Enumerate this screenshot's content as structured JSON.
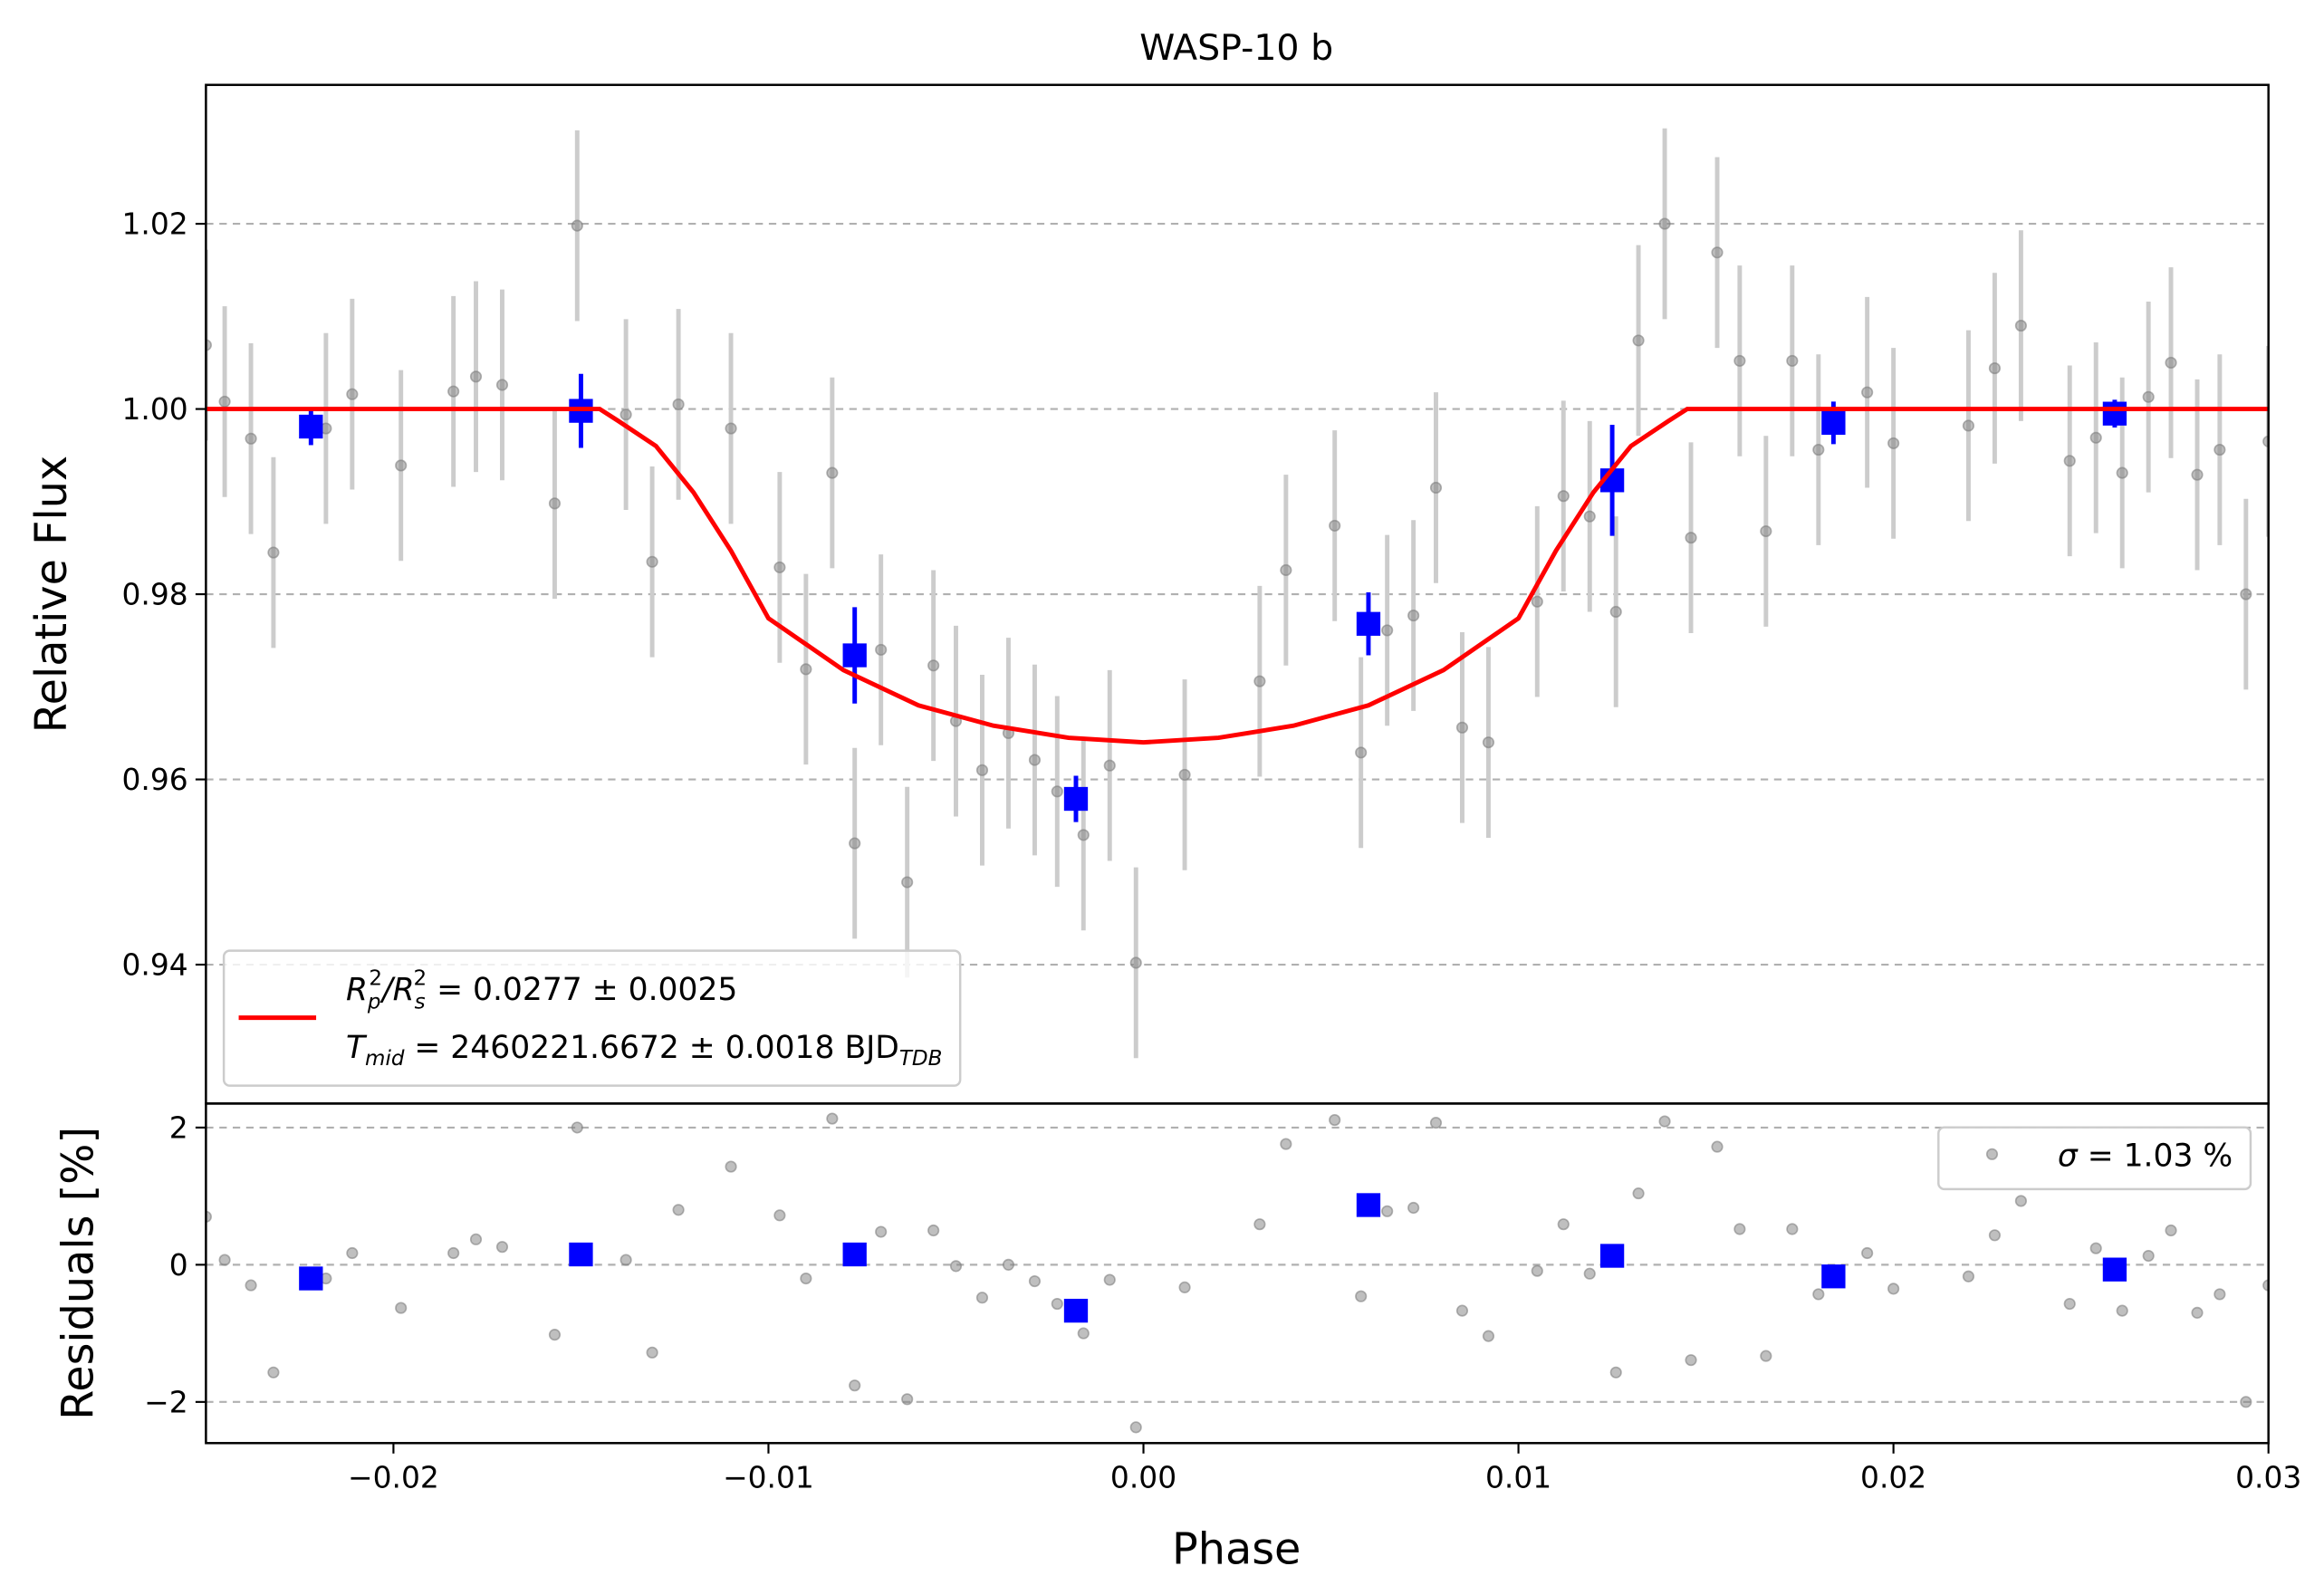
{
  "chart_data": [
    {
      "type": "scatter",
      "title": "WASP-10 b",
      "y_label": "Relative Flux",
      "xlim": [
        -0.025,
        0.03
      ],
      "ylim": [
        0.925,
        1.035
      ],
      "yticks": [
        0.94,
        0.96,
        0.98,
        {
          "value": 1.0,
          "label": "1.00"
        },
        1.02
      ],
      "grid": true,
      "legend": "lower left",
      "series": [
        {
          "style": "points",
          "color": "#808080",
          "errcolor": "#cccccc",
          "yerr": 0.0103,
          "x": [
            -0.025,
            -0.0245,
            -0.0238,
            -0.0232,
            -0.0218,
            -0.0211,
            -0.0198,
            -0.0184,
            -0.0178,
            -0.0171,
            -0.0157,
            -0.0151,
            -0.0138,
            -0.0131,
            -0.0124,
            -0.011,
            -0.0097,
            -0.009,
            -0.0083,
            -0.0077,
            -0.007,
            -0.0063,
            -0.0056,
            -0.005,
            -0.0043,
            -0.0036,
            -0.0029,
            -0.0023,
            -0.0016,
            -0.0009,
            -0.0002,
            0.0011,
            0.0031,
            0.0038,
            0.0051,
            0.0058,
            0.0065,
            0.0072,
            0.0078,
            0.0085,
            0.0092,
            0.0105,
            0.0112,
            0.0119,
            0.0126,
            0.0132,
            0.0139,
            0.0146,
            0.0153,
            0.0159,
            0.0166,
            0.0173,
            0.018,
            0.0193,
            0.02,
            0.022,
            0.0227,
            0.0234,
            0.0247,
            0.0254,
            0.0261,
            0.0268,
            0.0274,
            0.0281,
            0.0287,
            0.0294,
            0.03
          ],
          "values": [
            1.0069,
            1.0008,
            0.9968,
            0.9845,
            0.9979,
            1.0016,
            0.9939,
            1.0019,
            1.0035,
            1.0026,
            0.9898,
            1.0198,
            0.9994,
            0.9835,
            1.0005,
            0.9979,
            0.9829,
            0.9719,
            0.9931,
            0.9531,
            0.974,
            0.9489,
            0.9723,
            0.9663,
            0.961,
            0.965,
            0.9621,
            0.9587,
            0.954,
            0.9615,
            0.9402,
            0.9605,
            0.9706,
            0.9826,
            0.9874,
            0.9629,
            0.9761,
            0.9777,
            0.9915,
            0.9656,
            0.964,
            0.9792,
            0.9906,
            0.9884,
            0.9781,
            1.0074,
            1.02,
            0.9861,
            1.0169,
            1.0052,
            0.9868,
            1.0052,
            0.9956,
            1.0018,
            0.9963,
            0.9982,
            1.0044,
            1.009,
            0.9944,
            0.9969,
            0.9931,
            1.0013,
            1.005,
            0.9929,
            0.9956,
            0.98,
            0.9965
          ]
        },
        {
          "style": "squares",
          "color": "#0000ff",
          "errcolor": "#0000ff",
          "x": [
            -0.0222,
            -0.015,
            -0.0077,
            -0.0018,
            0.006,
            0.0125,
            0.0184,
            0.0259
          ],
          "values": [
            0.9981,
            0.9998,
            0.9734,
            0.9579,
            0.9768,
            0.9923,
            0.9985,
            0.9995
          ],
          "yerr": [
            0.002,
            0.004,
            0.0052,
            0.0025,
            0.0034,
            0.006,
            0.0023,
            0.0015
          ]
        },
        {
          "style": "line",
          "color": "#ff0000",
          "name": [
            [
              "R",
              "p",
              "2",
              "/R",
              "s",
              "2",
              " = 0.0277 ± 0.0025"
            ],
            [
              "T",
              "mid",
              " = 2460221.6672 ± 0.0018 BJD",
              "TDB"
            ]
          ],
          "x": [
            -0.025,
            -0.0145,
            -0.014,
            -0.013,
            -0.012,
            -0.011,
            -0.01,
            -0.008,
            -0.006,
            -0.004,
            -0.002,
            0,
            0.002,
            0.004,
            0.006,
            0.008,
            0.01,
            0.011,
            0.012,
            0.013,
            0.014,
            0.0145,
            0.03
          ],
          "values": [
            1,
            1,
            0.9987,
            0.996,
            0.991,
            0.9847,
            0.9774,
            0.9718,
            0.968,
            0.9658,
            0.9645,
            0.964,
            0.9645,
            0.9658,
            0.968,
            0.9718,
            0.9774,
            0.9847,
            0.991,
            0.996,
            0.9987,
            1,
            1
          ]
        }
      ]
    },
    {
      "type": "scatter",
      "y_label": "Residuals [%]",
      "x_label": "Phase",
      "xlim": [
        -0.025,
        0.03
      ],
      "ylim": [
        -2.6,
        2.35
      ],
      "xticks": [
        {
          "value": -0.02,
          "label": "−0.02"
        },
        {
          "value": -0.01,
          "label": "−0.01"
        },
        {
          "value": 0,
          "label": "0.00"
        },
        0.01,
        0.02,
        0.03
      ],
      "yticks": [
        {
          "value": -2,
          "label": "−2"
        },
        0,
        2
      ],
      "grid": true,
      "legend": "upper right",
      "series": [
        {
          "style": "points",
          "color": "#808080",
          "name": [
            "σ",
            " = 1.03 %"
          ],
          "x": [
            -0.025,
            -0.0245,
            -0.0238,
            -0.0232,
            -0.0218,
            -0.0211,
            -0.0198,
            -0.0184,
            -0.0178,
            -0.0171,
            -0.0157,
            -0.0151,
            -0.0138,
            -0.0131,
            -0.0124,
            -0.011,
            -0.0097,
            -0.009,
            -0.0083,
            -0.0077,
            -0.007,
            -0.0063,
            -0.0056,
            -0.005,
            -0.0043,
            -0.0036,
            -0.0029,
            -0.0023,
            -0.0016,
            -0.0009,
            -0.0002,
            0.0011,
            0.0031,
            0.0038,
            0.0051,
            0.0058,
            0.0065,
            0.0072,
            0.0078,
            0.0085,
            0.0092,
            0.0105,
            0.0112,
            0.0119,
            0.0126,
            0.0132,
            0.0139,
            0.0146,
            0.0153,
            0.0159,
            0.0166,
            0.0173,
            0.018,
            0.0193,
            0.02,
            0.022,
            0.0227,
            0.0234,
            0.0247,
            0.0254,
            0.0261,
            0.0268,
            0.0274,
            0.0281,
            0.0287,
            0.0294,
            0.03
          ],
          "values": [
            0.7,
            0.07,
            -0.3,
            -1.57,
            -0.2,
            0.17,
            -0.63,
            0.17,
            0.37,
            0.26,
            -1.02,
            2.0,
            0.07,
            -1.28,
            0.8,
            1.43,
            0.72,
            -0.2,
            2.13,
            -1.76,
            0.48,
            -1.96,
            0.5,
            -0.02,
            -0.48,
            0,
            -0.24,
            -0.57,
            -1.0,
            -0.22,
            -2.37,
            -0.33,
            0.59,
            1.76,
            2.11,
            -0.46,
            0.78,
            0.83,
            2.07,
            -0.67,
            -1.04,
            -0.09,
            0.59,
            -0.13,
            -1.57,
            1.04,
            2.09,
            -1.39,
            1.72,
            0.52,
            -1.33,
            0.52,
            -0.43,
            0.17,
            -0.35,
            -0.17,
            0.43,
            0.93,
            -0.57,
            0.24,
            -0.67,
            0.13,
            0.5,
            -0.7,
            -0.43,
            -2.0,
            -0.3
          ]
        },
        {
          "style": "squares",
          "color": "#0000ff",
          "x": [
            -0.0222,
            -0.015,
            -0.0077,
            -0.0018,
            0.006,
            0.0125,
            0.0184,
            0.0259
          ],
          "values": [
            -0.2,
            0.15,
            0.15,
            -0.67,
            0.87,
            0.13,
            -0.17,
            -0.07
          ]
        }
      ]
    }
  ]
}
